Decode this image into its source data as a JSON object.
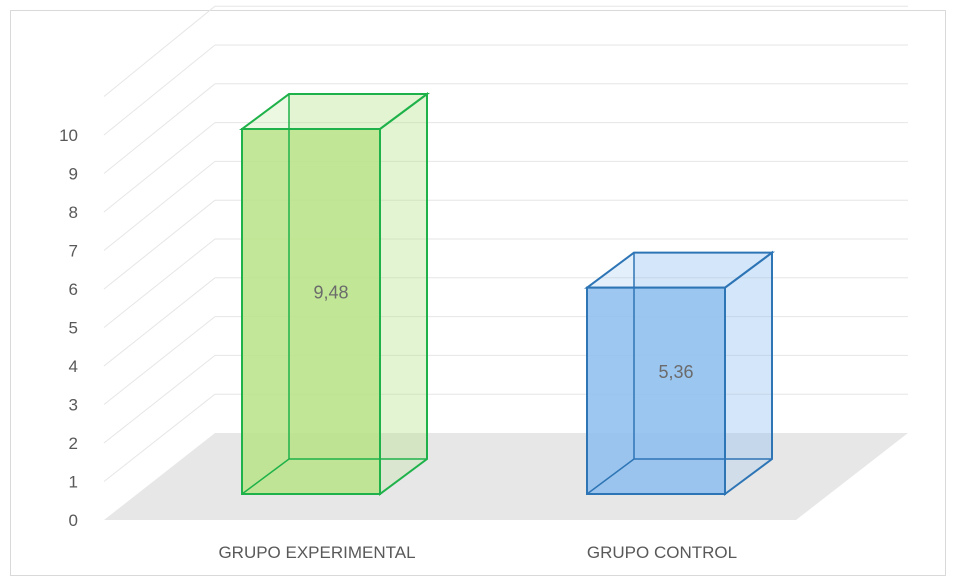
{
  "chart_data": {
    "type": "bar",
    "style": "3d-column",
    "categories": [
      "GRUPO EXPERIMENTAL",
      "GRUPO CONTROL"
    ],
    "values": [
      9.48,
      5.36
    ],
    "data_labels": [
      "9,48",
      "5,36"
    ],
    "yticks": [
      "0",
      "1",
      "2",
      "3",
      "4",
      "5",
      "6",
      "7",
      "8",
      "9",
      "10"
    ],
    "ylim": [
      0,
      10
    ],
    "grid": true,
    "colors": [
      "#b9e48a",
      "#8fbfee"
    ],
    "edge_colors": [
      "#1fb24a",
      "#2e75b6"
    ],
    "title": "",
    "xlabel": "",
    "ylabel": ""
  }
}
